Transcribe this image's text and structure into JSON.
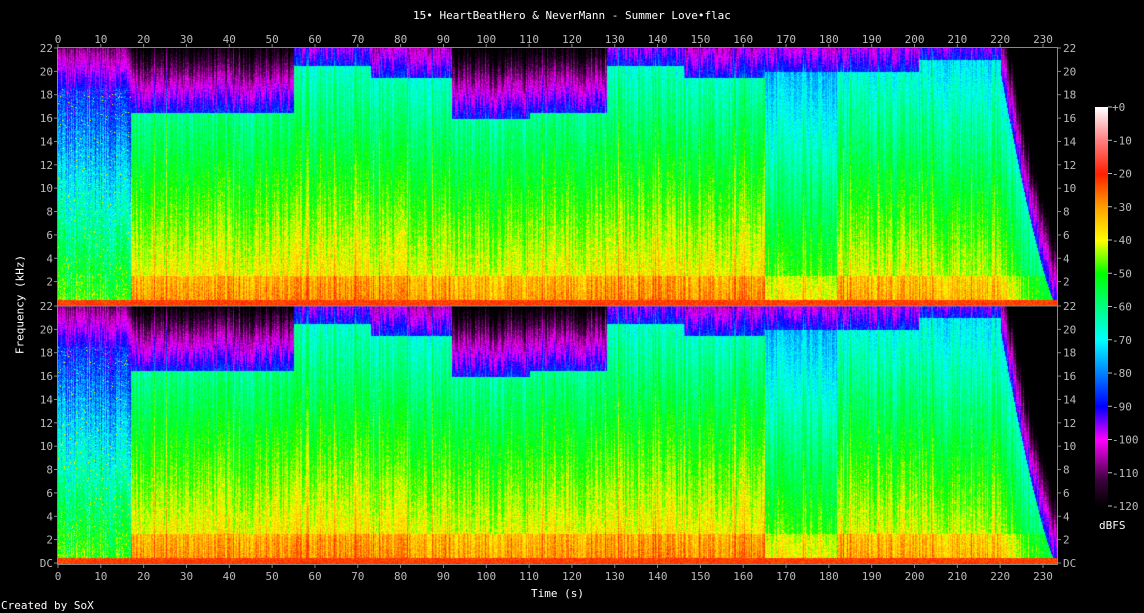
{
  "chart_data": {
    "type": "heatmap",
    "title": "15• HeartBeatHero & NeverMann - Summer Love•flac",
    "xlabel": "Time (s)",
    "ylabel": "Frequency (kHz)",
    "xlim": [
      0,
      233
    ],
    "ylim": [
      0,
      22
    ],
    "channels": 2,
    "x_ticks": [
      "0",
      "10",
      "20",
      "30",
      "40",
      "50",
      "60",
      "70",
      "80",
      "90",
      "100",
      "110",
      "120",
      "130",
      "140",
      "150",
      "160",
      "170",
      "180",
      "190",
      "200",
      "210",
      "220",
      "230"
    ],
    "y_ticks": [
      "DC",
      "2",
      "4",
      "6",
      "8",
      "10",
      "12",
      "14",
      "16",
      "18",
      "20",
      "22"
    ],
    "colorbar": {
      "label": "dBFS",
      "range": [
        -120,
        0
      ],
      "ticks": [
        "+0",
        "-10",
        "-20",
        "-30",
        "-40",
        "-50",
        "-60",
        "-70",
        "-80",
        "-90",
        "-100",
        "-110",
        "-120"
      ]
    },
    "segments_dbfs": [
      {
        "start": 0,
        "end": 17,
        "level": -58,
        "cutoff_khz": 18.5
      },
      {
        "start": 17,
        "end": 55,
        "level": -38,
        "cutoff_khz": 16.5
      },
      {
        "start": 55,
        "end": 73,
        "level": -37,
        "cutoff_khz": 20.5
      },
      {
        "start": 73,
        "end": 92,
        "level": -38,
        "cutoff_khz": 19.5
      },
      {
        "start": 92,
        "end": 110,
        "level": -40,
        "cutoff_khz": 16
      },
      {
        "start": 110,
        "end": 128,
        "level": -38,
        "cutoff_khz": 16.5
      },
      {
        "start": 128,
        "end": 146,
        "level": -37,
        "cutoff_khz": 20.5
      },
      {
        "start": 146,
        "end": 165,
        "level": -38,
        "cutoff_khz": 19.5
      },
      {
        "start": 165,
        "end": 182,
        "level": -47,
        "cutoff_khz": 20
      },
      {
        "start": 182,
        "end": 201,
        "level": -40,
        "cutoff_khz": 20
      },
      {
        "start": 201,
        "end": 220,
        "level": -41,
        "cutoff_khz": 21
      },
      {
        "start": 220,
        "end": 233,
        "level": -45,
        "cutoff_khz": 0
      }
    ],
    "colormap_hex": [
      "#000000",
      "#3c003c",
      "#c000c0",
      "#ff00ff",
      "#8000ff",
      "#0000ff",
      "#0080ff",
      "#00ffff",
      "#00ff80",
      "#00ff00",
      "#ffff00",
      "#ffa000",
      "#ff2000",
      "#ff8080",
      "#ffffff"
    ]
  },
  "footer": "Created by SoX"
}
